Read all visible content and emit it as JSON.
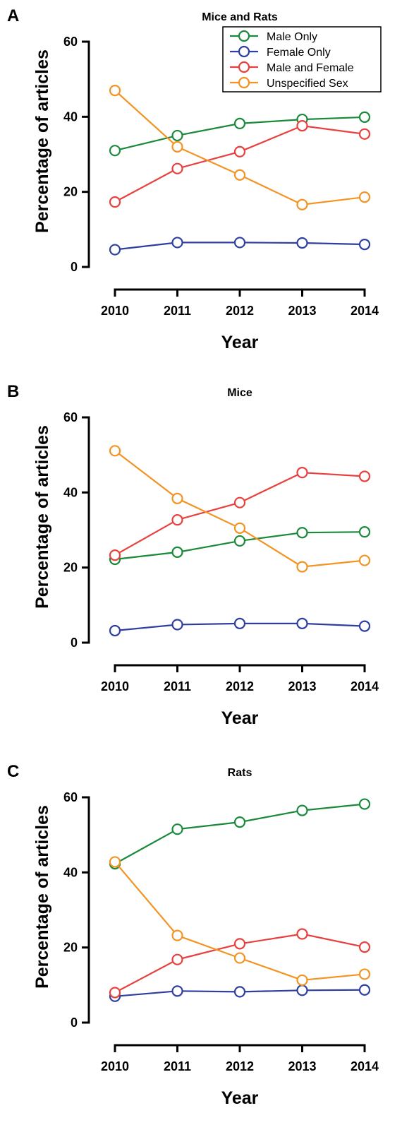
{
  "chart_data": [
    {
      "type": "line",
      "panel": "A",
      "title": "Mice and Rats",
      "xlabel": "Year",
      "ylabel": "Percentage of articles",
      "x": [
        2010,
        2011,
        2012,
        2013,
        2014
      ],
      "ylim": [
        0,
        60
      ],
      "yticks": [
        0,
        20,
        40,
        60
      ],
      "grid": false,
      "legend": "top-right",
      "series": [
        {
          "name": "Male Only",
          "color": "#1a8a3a",
          "values": [
            31,
            35,
            38.2,
            39.3,
            39.9
          ]
        },
        {
          "name": "Female Only",
          "color": "#2e3fa0",
          "values": [
            4.6,
            6.5,
            6.5,
            6.4,
            6
          ]
        },
        {
          "name": "Male and Female",
          "color": "#e8403e",
          "values": [
            17.3,
            26.2,
            30.7,
            37.6,
            35.4
          ]
        },
        {
          "name": "Unspecified Sex",
          "color": "#f39323",
          "values": [
            47,
            32,
            24.5,
            16.6,
            18.6
          ]
        }
      ]
    },
    {
      "type": "line",
      "panel": "B",
      "title": "Mice",
      "xlabel": "Year",
      "ylabel": "Percentage of articles",
      "x": [
        2010,
        2011,
        2012,
        2013,
        2014
      ],
      "ylim": [
        0,
        60
      ],
      "yticks": [
        0,
        20,
        40,
        60
      ],
      "grid": false,
      "series": [
        {
          "color": "#1a8a3a",
          "values": [
            22.2,
            24.1,
            27.1,
            29.3,
            29.5
          ]
        },
        {
          "color": "#2e3fa0",
          "values": [
            3.2,
            4.8,
            5.1,
            5.1,
            4.4
          ]
        },
        {
          "color": "#e8403e",
          "values": [
            23.3,
            32.7,
            37.3,
            45.3,
            44.3
          ]
        },
        {
          "color": "#f39323",
          "values": [
            51.1,
            38.4,
            30.5,
            20.2,
            21.9
          ]
        }
      ]
    },
    {
      "type": "line",
      "panel": "C",
      "title": "Rats",
      "xlabel": "Year",
      "ylabel": "Percentage of articles",
      "x": [
        2010,
        2011,
        2012,
        2013,
        2014
      ],
      "ylim": [
        0,
        60
      ],
      "yticks": [
        0,
        20,
        40,
        60
      ],
      "grid": false,
      "series": [
        {
          "color": "#1a8a3a",
          "values": [
            42.3,
            51.5,
            53.4,
            56.5,
            58.2
          ]
        },
        {
          "color": "#2e3fa0",
          "values": [
            7,
            8.4,
            8.2,
            8.6,
            8.7
          ]
        },
        {
          "color": "#e8403e",
          "values": [
            8,
            16.8,
            21,
            23.6,
            20.1
          ]
        },
        {
          "color": "#f39323",
          "values": [
            42.8,
            23.2,
            17.2,
            11.3,
            12.9
          ]
        }
      ]
    }
  ]
}
